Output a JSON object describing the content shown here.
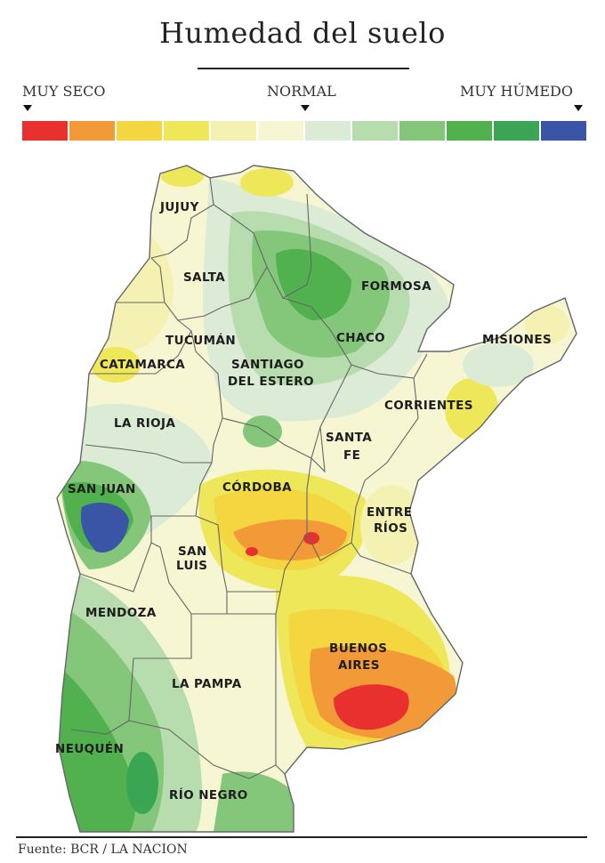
{
  "title": "Humedad del suelo",
  "legend": {
    "dry_label": "MUY SECO",
    "normal_label": "NORMAL",
    "wet_label": "MUY HÚMEDO",
    "colors": [
      "#e8302e",
      "#f29a38",
      "#f3d640",
      "#eee75a",
      "#f4f1b3",
      "#f7f6d3",
      "#dcebd6",
      "#b7dcae",
      "#84c77a",
      "#50b14e",
      "#3aa653",
      "#3a55a6"
    ]
  },
  "provinces": {
    "jujuy": "JUJUY",
    "salta": "SALTA",
    "formosa": "FORMOSA",
    "tucuman": "TUCUMÁN",
    "chaco": "CHACO",
    "misiones": "MISIONES",
    "catamarca": "CATAMARCA",
    "santiago_1": "SANTIAGO",
    "santiago_2": "DEL ESTERO",
    "corrientes": "CORRIENTES",
    "la_rioja": "LA RIOJA",
    "santa_fe_1": "SANTA",
    "santa_fe_2": "FE",
    "san_juan": "SAN JUAN",
    "cordoba": "CÓRDOBA",
    "entre_rios_1": "ENTRE",
    "entre_rios_2": "RÍOS",
    "san_luis_1": "SAN",
    "san_luis_2": "LUIS",
    "mendoza": "MENDOZA",
    "buenos_aires_1": "BUENOS",
    "buenos_aires_2": "AIRES",
    "la_pampa": "LA PAMPA",
    "neuquen": "NEUQUÉN",
    "rio_negro": "RÍO NEGRO"
  },
  "source": "Fuente: BCR / LA NACION"
}
